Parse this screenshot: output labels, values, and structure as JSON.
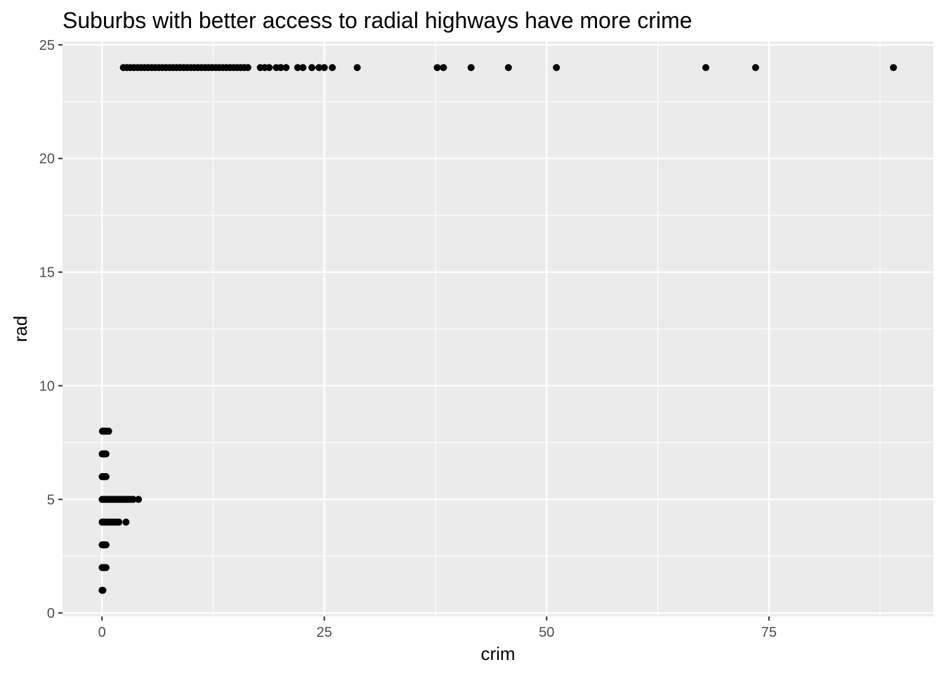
{
  "chart_data": {
    "type": "scatter",
    "title": "Suburbs with better access to radial highways have more crime",
    "xlabel": "crim",
    "ylabel": "rad",
    "xlim": [
      -4.44,
      93.5
    ],
    "ylim": [
      -0.15,
      25.15
    ],
    "x_ticks": [
      0,
      25,
      50,
      75
    ],
    "x_tick_labels": [
      "0",
      "25",
      "50",
      "75"
    ],
    "y_ticks": [
      0,
      5,
      10,
      15,
      20,
      25
    ],
    "y_tick_labels": [
      "0",
      "5",
      "10",
      "15",
      "20",
      "25"
    ],
    "grid": true,
    "panel_background": "#ebebeb",
    "point_color": "#000000",
    "points": [
      {
        "x": 0.01,
        "y": 1
      },
      {
        "x": 0.06,
        "y": 1
      },
      {
        "x": 0.1,
        "y": 1
      },
      {
        "x": 0.02,
        "y": 2
      },
      {
        "x": 0.1,
        "y": 2
      },
      {
        "x": 0.2,
        "y": 2
      },
      {
        "x": 0.3,
        "y": 2
      },
      {
        "x": 0.45,
        "y": 2
      },
      {
        "x": 0.02,
        "y": 3
      },
      {
        "x": 0.1,
        "y": 3
      },
      {
        "x": 0.2,
        "y": 3
      },
      {
        "x": 0.3,
        "y": 3
      },
      {
        "x": 0.45,
        "y": 3
      },
      {
        "x": 0.02,
        "y": 4
      },
      {
        "x": 0.15,
        "y": 4
      },
      {
        "x": 0.3,
        "y": 4
      },
      {
        "x": 0.5,
        "y": 4
      },
      {
        "x": 0.7,
        "y": 4
      },
      {
        "x": 0.9,
        "y": 4
      },
      {
        "x": 1.1,
        "y": 4
      },
      {
        "x": 1.3,
        "y": 4
      },
      {
        "x": 1.5,
        "y": 4
      },
      {
        "x": 1.7,
        "y": 4
      },
      {
        "x": 1.9,
        "y": 4
      },
      {
        "x": 2.7,
        "y": 4
      },
      {
        "x": 0.02,
        "y": 5
      },
      {
        "x": 0.2,
        "y": 5
      },
      {
        "x": 0.4,
        "y": 5
      },
      {
        "x": 0.6,
        "y": 5
      },
      {
        "x": 0.8,
        "y": 5
      },
      {
        "x": 1.0,
        "y": 5
      },
      {
        "x": 1.2,
        "y": 5
      },
      {
        "x": 1.4,
        "y": 5
      },
      {
        "x": 1.6,
        "y": 5
      },
      {
        "x": 1.8,
        "y": 5
      },
      {
        "x": 2.0,
        "y": 5
      },
      {
        "x": 2.2,
        "y": 5
      },
      {
        "x": 2.4,
        "y": 5
      },
      {
        "x": 2.6,
        "y": 5
      },
      {
        "x": 2.8,
        "y": 5
      },
      {
        "x": 3.0,
        "y": 5
      },
      {
        "x": 3.3,
        "y": 5
      },
      {
        "x": 3.5,
        "y": 5
      },
      {
        "x": 4.1,
        "y": 5
      },
      {
        "x": 0.02,
        "y": 6
      },
      {
        "x": 0.1,
        "y": 6
      },
      {
        "x": 0.2,
        "y": 6
      },
      {
        "x": 0.3,
        "y": 6
      },
      {
        "x": 0.45,
        "y": 6
      },
      {
        "x": 0.02,
        "y": 7
      },
      {
        "x": 0.1,
        "y": 7
      },
      {
        "x": 0.2,
        "y": 7
      },
      {
        "x": 0.3,
        "y": 7
      },
      {
        "x": 0.45,
        "y": 7
      },
      {
        "x": 0.05,
        "y": 8
      },
      {
        "x": 0.15,
        "y": 8
      },
      {
        "x": 0.3,
        "y": 8
      },
      {
        "x": 0.45,
        "y": 8
      },
      {
        "x": 0.6,
        "y": 8
      },
      {
        "x": 0.75,
        "y": 8
      },
      {
        "x": 2.4,
        "y": 24
      },
      {
        "x": 2.8,
        "y": 24
      },
      {
        "x": 3.2,
        "y": 24
      },
      {
        "x": 3.6,
        "y": 24
      },
      {
        "x": 4.0,
        "y": 24
      },
      {
        "x": 4.4,
        "y": 24
      },
      {
        "x": 4.8,
        "y": 24
      },
      {
        "x": 5.2,
        "y": 24
      },
      {
        "x": 5.6,
        "y": 24
      },
      {
        "x": 6.0,
        "y": 24
      },
      {
        "x": 6.4,
        "y": 24
      },
      {
        "x": 6.8,
        "y": 24
      },
      {
        "x": 7.2,
        "y": 24
      },
      {
        "x": 7.6,
        "y": 24
      },
      {
        "x": 8.0,
        "y": 24
      },
      {
        "x": 8.4,
        "y": 24
      },
      {
        "x": 8.8,
        "y": 24
      },
      {
        "x": 9.2,
        "y": 24
      },
      {
        "x": 9.6,
        "y": 24
      },
      {
        "x": 10.0,
        "y": 24
      },
      {
        "x": 10.4,
        "y": 24
      },
      {
        "x": 10.8,
        "y": 24
      },
      {
        "x": 11.2,
        "y": 24
      },
      {
        "x": 11.6,
        "y": 24
      },
      {
        "x": 12.0,
        "y": 24
      },
      {
        "x": 12.4,
        "y": 24
      },
      {
        "x": 12.8,
        "y": 24
      },
      {
        "x": 13.2,
        "y": 24
      },
      {
        "x": 13.6,
        "y": 24
      },
      {
        "x": 14.0,
        "y": 24
      },
      {
        "x": 14.4,
        "y": 24
      },
      {
        "x": 14.8,
        "y": 24
      },
      {
        "x": 15.2,
        "y": 24
      },
      {
        "x": 15.6,
        "y": 24
      },
      {
        "x": 16.0,
        "y": 24
      },
      {
        "x": 16.4,
        "y": 24
      },
      {
        "x": 17.8,
        "y": 24
      },
      {
        "x": 18.3,
        "y": 24
      },
      {
        "x": 18.8,
        "y": 24
      },
      {
        "x": 19.6,
        "y": 24
      },
      {
        "x": 20.1,
        "y": 24
      },
      {
        "x": 20.7,
        "y": 24
      },
      {
        "x": 22.0,
        "y": 24
      },
      {
        "x": 22.6,
        "y": 24
      },
      {
        "x": 23.6,
        "y": 24
      },
      {
        "x": 24.4,
        "y": 24
      },
      {
        "x": 25.0,
        "y": 24
      },
      {
        "x": 25.9,
        "y": 24
      },
      {
        "x": 28.7,
        "y": 24
      },
      {
        "x": 37.7,
        "y": 24
      },
      {
        "x": 38.4,
        "y": 24
      },
      {
        "x": 41.5,
        "y": 24
      },
      {
        "x": 45.7,
        "y": 24
      },
      {
        "x": 51.1,
        "y": 24
      },
      {
        "x": 67.9,
        "y": 24
      },
      {
        "x": 73.5,
        "y": 24
      },
      {
        "x": 89.0,
        "y": 24
      }
    ]
  }
}
